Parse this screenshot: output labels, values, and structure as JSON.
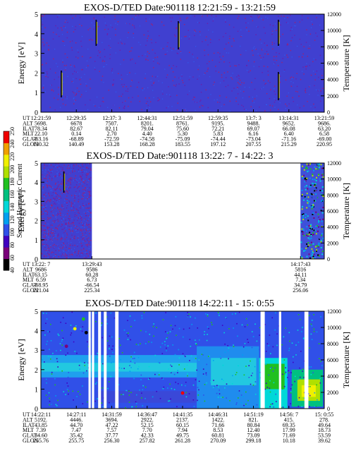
{
  "chart_data": [
    {
      "type": "heatmap",
      "title": "EXOS-D/TED   Date:901118   12:21:59 - 13:21:59",
      "ylabel": "Energy [eV]",
      "y2label": "Temperature [K]",
      "ylim": [
        0,
        5
      ],
      "y2lim": [
        0,
        12000
      ],
      "yticks": [
        "0",
        "1",
        "2",
        "3",
        "4",
        "5"
      ],
      "y2ticks": [
        "0",
        "2000",
        "4000",
        "6000",
        "8000",
        "10000",
        "12000"
      ],
      "coverage": [
        [
          0,
          1
        ]
      ],
      "background_color": "#4040d0",
      "ephemeris": {
        "labels": [
          "UT",
          "ALT",
          "ILAT",
          "MLT",
          "GLAT",
          "GLON"
        ],
        "columns": [
          [
            "12:21:59",
            "5698.",
            "78.34",
            "22.10",
            "-63.16",
            "130.32"
          ],
          [
            "12:29:35",
            "6678",
            "82.67",
            "0.14",
            "-68.89",
            "140.49"
          ],
          [
            "12:37: 3",
            "7507.",
            "82.11",
            "2.70",
            "-72.59",
            "153.28"
          ],
          [
            "12:44:31",
            "8201.",
            "79.04",
            "4.40",
            "-74.58",
            "168.28"
          ],
          [
            "12:51:59",
            "8761.",
            "75.60",
            "5.30",
            "-75.09",
            "183.55"
          ],
          [
            "12:59:35",
            "9195.",
            "72.21",
            "5.83",
            "-74.44",
            "197.12"
          ],
          [
            "13:7: 3",
            "9488.",
            "69.07",
            "6.16",
            "-73.04",
            "207.55"
          ],
          [
            "13:14:31",
            "9652.",
            "66.08",
            "6.40",
            "-71.16",
            "215.29"
          ],
          [
            "13:21:59",
            "9686.",
            "63.20",
            "6.58",
            "-69.00",
            "220.95"
          ]
        ]
      }
    },
    {
      "type": "heatmap",
      "title": "EXOS-D/TED   Date:901118   13:22: 7 - 14:22: 3",
      "ylabel": "Energy [eV]",
      "y2label": "Temperature [K]",
      "ylim": [
        0,
        5
      ],
      "y2lim": [
        0,
        12000
      ],
      "yticks": [
        "0",
        "1",
        "2",
        "3",
        "4",
        "5"
      ],
      "y2ticks": [
        "0",
        "2000",
        "4000",
        "6000",
        "8000",
        "10000",
        "12000"
      ],
      "coverage": [
        [
          0,
          0.18
        ],
        [
          0.916,
          1
        ]
      ],
      "ephemeris": {
        "labels": [
          "UT",
          "ALT",
          "ILAT",
          "MLT",
          "GLAT",
          "GLON"
        ],
        "columns": [
          [
            "13:22: 7",
            "9686",
            "63.15",
            "6.59",
            "-68.95",
            "221.04"
          ],
          [
            "13:29:43",
            "9586",
            "60.28",
            "6.73",
            "-66.54",
            "225.34"
          ],
          [
            "14:17:43",
            "5816",
            "44.11",
            "7.34",
            "34.79",
            "256.06"
          ]
        ]
      },
      "colorbar": {
        "label": "Second Harmonic Current",
        "ticks": [
          "40",
          "60",
          "80",
          "100",
          "120",
          "140",
          "160",
          "180",
          "200",
          "220",
          "240",
          "250"
        ],
        "colors": [
          "#000000",
          "#7a007a",
          "#4000c0",
          "#3050e8",
          "#00a0f0",
          "#00d8d8",
          "#00c080",
          "#20c020",
          "#b0e000",
          "#f0f000",
          "#f0a000",
          "#f00000"
        ]
      }
    },
    {
      "type": "heatmap",
      "title": "EXOS-D/TED   Date:901118   14:22:11 - 15: 0:55",
      "ylabel": "Energy [eV]",
      "y2label": "Temperature [K]",
      "ylim": [
        0,
        5
      ],
      "y2lim": [
        0,
        12000
      ],
      "yticks": [
        "0",
        "1",
        "2",
        "3",
        "4",
        "5"
      ],
      "y2ticks": [
        "0",
        "2000",
        "4000",
        "6000",
        "8000",
        "10000",
        "12000"
      ],
      "ephemeris": {
        "labels": [
          "UT",
          "ALT",
          "ILAT",
          "MLT",
          "GLAT",
          "GLON"
        ],
        "columns": [
          [
            "14:22:11",
            "5192.",
            "43.85",
            "7.39",
            "34.60",
            "255.76"
          ],
          [
            "14:27:11",
            "4446.",
            "44.70",
            "7.47",
            "35.42",
            "255.75"
          ],
          [
            "14:31:59",
            "3694.",
            "47.22",
            "7.57",
            "37.77",
            "256.30"
          ],
          [
            "14:36:47",
            "2922.",
            "52.15",
            "7.70",
            "42.33",
            "257.82"
          ],
          [
            "14:41:35",
            "2137.",
            "60.15",
            "7.94",
            "49.75",
            "261.28"
          ],
          [
            "14:46:31",
            "1422.",
            "71.66",
            "8.53",
            "60.81",
            "270.09"
          ],
          [
            "14:51:19",
            "821.",
            "80.84",
            "12.40",
            "73.09",
            "299.18"
          ],
          [
            "14:56: 7",
            "415.",
            "69.35",
            "17.99",
            "71.69",
            "10.18"
          ],
          [
            "15: 0:55",
            "278.",
            "49.64",
            "18.73",
            "53.59",
            "39.62"
          ]
        ]
      }
    }
  ]
}
